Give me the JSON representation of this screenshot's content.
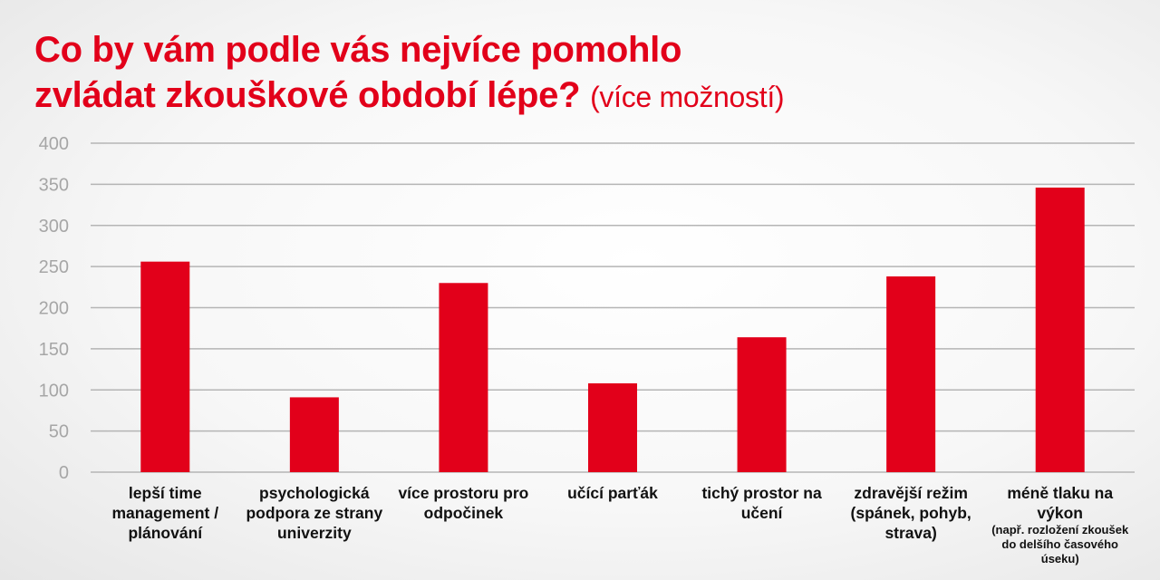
{
  "chart_data": {
    "type": "bar",
    "title": "Co by vám podle vás nejvíce pomohlo zvládat zkouškové období lépe?",
    "subtitle": "(více možností)",
    "title_line1": "Co by vám podle vás nejvíce pomohlo",
    "title_line2": "zvládat zkouškové období lépe?",
    "categories": [
      {
        "label": "lepší time management / plánování",
        "note": ""
      },
      {
        "label": "psychologická podpora ze strany univerzity",
        "note": ""
      },
      {
        "label": "více prostoru pro odpočinek",
        "note": ""
      },
      {
        "label": "učící parťák",
        "note": ""
      },
      {
        "label": "tichý prostor na učení",
        "note": ""
      },
      {
        "label": "zdravější režim (spánek, pohyb, strava)",
        "note": ""
      },
      {
        "label": "méně tlaku na výkon",
        "note": "(např. rozložení zkoušek do delšího časového úseku)"
      }
    ],
    "values": [
      256,
      91,
      230,
      108,
      164,
      238,
      346
    ],
    "xlabel": "",
    "ylabel": "",
    "ylim": [
      0,
      400
    ],
    "yticks": [
      0,
      50,
      100,
      150,
      200,
      250,
      300,
      350,
      400
    ],
    "grid": true,
    "legend": "none",
    "colors": {
      "bar": "#e2001a",
      "title": "#e2001a",
      "grid": "#b5b5b5",
      "tick": "#a6a6a6"
    }
  }
}
